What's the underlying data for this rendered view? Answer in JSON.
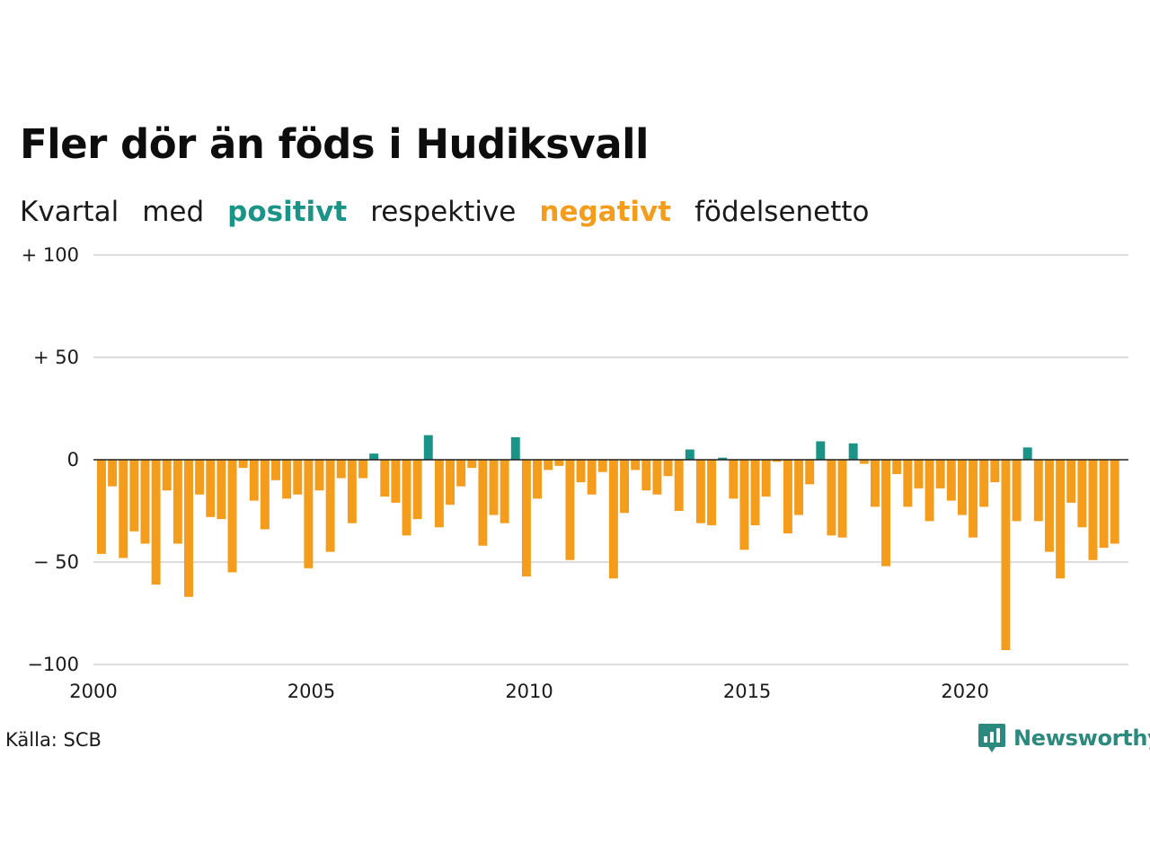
{
  "header": {
    "title": "Fler dör än föds i Hudiksvall",
    "subtitle_parts": {
      "w1": "Kvartal",
      "w2": "med",
      "positive_word": "positivt",
      "w3": "respektive",
      "negative_word": "negativt",
      "w4": "födelsenetto"
    }
  },
  "footer": {
    "source": "Källa: SCB",
    "brand": "Newsworthy"
  },
  "colors": {
    "positive": "#1a9486",
    "negative": "#f49d1d",
    "grid": "#dddddd",
    "zero_line": "#222222",
    "brand": "#2b8a7d"
  },
  "icons": {
    "brand_logo": "newsworthy-chart-icon"
  },
  "chart_data": {
    "type": "bar",
    "title": "Fler dör än föds i Hudiksvall",
    "subtitle": "Kvartal med positivt respektive negativt födelsenetto",
    "xlabel": "",
    "ylabel": "",
    "xlim": [
      2000,
      2023.75
    ],
    "ylim": [
      -100,
      100
    ],
    "x_ticks": [
      2000,
      2005,
      2010,
      2015,
      2020
    ],
    "x_tick_labels": [
      "2000",
      "2005",
      "2010",
      "2015",
      "2020"
    ],
    "y_ticks": [
      100,
      50,
      0,
      -50,
      -100
    ],
    "y_tick_labels": [
      "+ 100",
      "+  50",
      "0",
      "− 50",
      "−100"
    ],
    "grid": true,
    "legend": "none",
    "series": [
      {
        "start_quarter": "2000 Q1",
        "frequency": "quarterly",
        "values": [
          -46,
          -13,
          -48,
          -35,
          -41,
          -61,
          -15,
          -41,
          -67,
          -17,
          -28,
          -29,
          -55,
          -4,
          -20,
          -34,
          -10,
          -19,
          -17,
          -53,
          -15,
          -45,
          -9,
          -31,
          -9,
          3,
          -18,
          -21,
          -37,
          -29,
          12,
          -33,
          -22,
          -13,
          -4,
          -42,
          -27,
          -31,
          11,
          -57,
          -19,
          -5,
          -3,
          -49,
          -11,
          -17,
          -6,
          -58,
          -26,
          -5,
          -15,
          -17,
          -8,
          -25,
          5,
          -31,
          -32,
          1,
          -19,
          -44,
          -32,
          -18,
          -1,
          -36,
          -27,
          -12,
          9,
          -37,
          -38,
          8,
          -2,
          -23,
          -52,
          -7,
          -23,
          -14,
          -30,
          -14,
          -20,
          -27,
          -38,
          -23,
          -11,
          -93,
          -30,
          6,
          -30,
          -45,
          -58,
          -21,
          -33,
          -49,
          -43,
          -41
        ]
      }
    ]
  }
}
